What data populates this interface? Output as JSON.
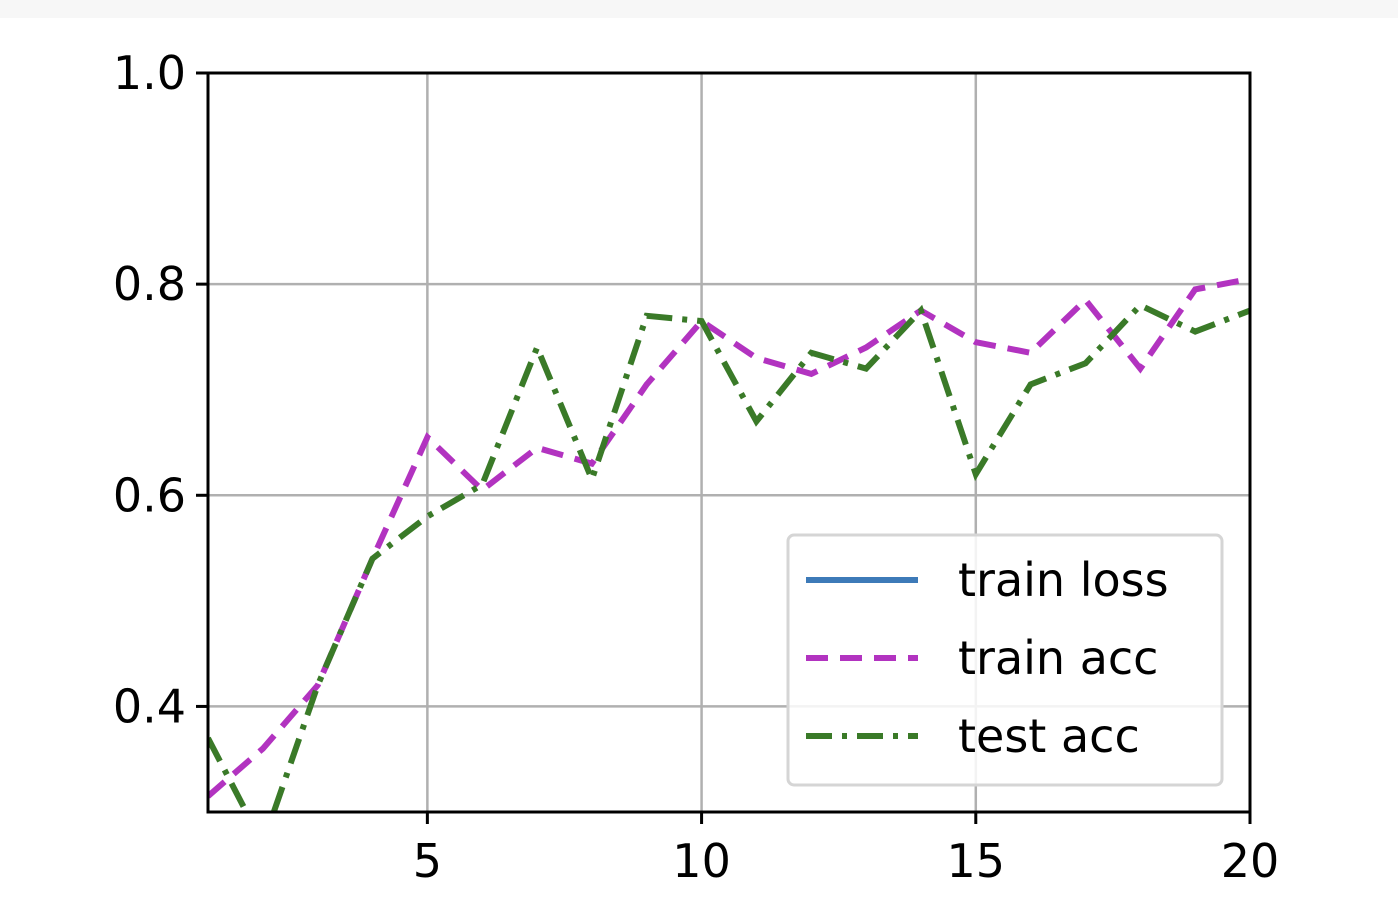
{
  "chart_data": {
    "type": "line",
    "title": "",
    "xlabel": "",
    "ylabel": "",
    "xlim": [
      1,
      20
    ],
    "ylim": [
      0.3,
      1.0
    ],
    "grid": true,
    "legend_position": "lower-right",
    "x_ticks": [
      5,
      10,
      15,
      20
    ],
    "y_ticks": [
      0.4,
      0.6,
      0.8,
      1.0
    ],
    "x_tick_labels": [
      "5",
      "10",
      "15",
      "20"
    ],
    "y_tick_labels": [
      "0.4",
      "0.6",
      "0.8",
      "1.0"
    ],
    "series": [
      {
        "name": "train loss",
        "color": "#3d7ab8",
        "style": "solid",
        "x": [],
        "y": []
      },
      {
        "name": "train acc",
        "color": "#b233c0",
        "style": "dashed",
        "x": [
          1,
          2,
          3,
          4,
          5,
          6,
          7,
          8,
          9,
          10,
          11,
          12,
          13,
          14,
          15,
          16,
          17,
          18,
          19,
          20
        ],
        "y": [
          0.315,
          0.36,
          0.42,
          0.54,
          0.655,
          0.605,
          0.645,
          0.63,
          0.705,
          0.765,
          0.73,
          0.715,
          0.74,
          0.775,
          0.745,
          0.735,
          0.785,
          0.72,
          0.795,
          0.805
        ]
      },
      {
        "name": "test acc",
        "color": "#3a7a28",
        "style": "dashdot",
        "x": [
          1,
          2,
          3,
          4,
          5,
          6,
          7,
          8,
          9,
          10,
          11,
          12,
          13,
          14,
          15,
          16,
          17,
          18,
          19,
          20
        ],
        "y": [
          0.37,
          0.27,
          0.42,
          0.54,
          0.58,
          0.61,
          0.74,
          0.615,
          0.77,
          0.765,
          0.67,
          0.735,
          0.72,
          0.775,
          0.62,
          0.705,
          0.725,
          0.78,
          0.755,
          0.775
        ]
      }
    ]
  }
}
